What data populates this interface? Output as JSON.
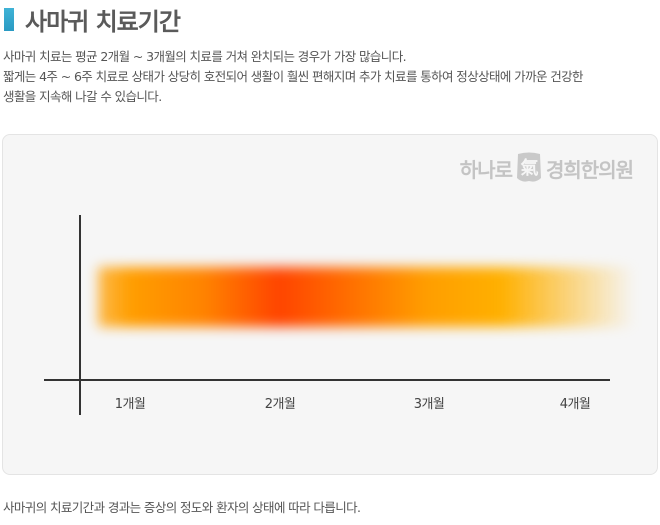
{
  "header": {
    "title": "사마귀 치료기간",
    "accent_color": "#2fa6cf"
  },
  "description": {
    "lines": [
      "사마귀 치료는 평균 2개월 ~ 3개월의 치료를 거쳐 완치되는 경우가 가장 많습니다.",
      "짧게는 4주 ~ 6주 치료로 상태가 상당히 호전되어 생활이 훨씬 편해지며 추가 치료를 통하여 정상상태에 가까운 건강한",
      "생활을 지속해 나갈 수 있습니다."
    ]
  },
  "brand": {
    "name_left": "하나로",
    "seal_char": "氣",
    "name_right": "경희한의원",
    "seal_icon": "seal-logo-icon"
  },
  "chart_data": {
    "type": "area",
    "title": "",
    "xlabel": "",
    "ylabel": "",
    "categories": [
      "1개월",
      "2개월",
      "3개월",
      "4개월"
    ],
    "note": "",
    "intensity_band": {
      "stops": [
        {
          "month": 0.3,
          "level": 0.0
        },
        {
          "month": 1.0,
          "level": 0.5
        },
        {
          "month": 1.5,
          "level": 0.65
        },
        {
          "month": 2.0,
          "level": 1.0
        },
        {
          "month": 2.6,
          "level": 0.7
        },
        {
          "month": 3.0,
          "level": 0.5
        },
        {
          "month": 3.5,
          "level": 0.4
        },
        {
          "month": 4.4,
          "level": 0.0
        }
      ],
      "colors": {
        "low": "#ffb000",
        "high": "#ff4400"
      }
    }
  },
  "footnote": "사마귀의 치료기간과 경과는 증상의 정도와 환자의 상태에 따라 다릅니다."
}
